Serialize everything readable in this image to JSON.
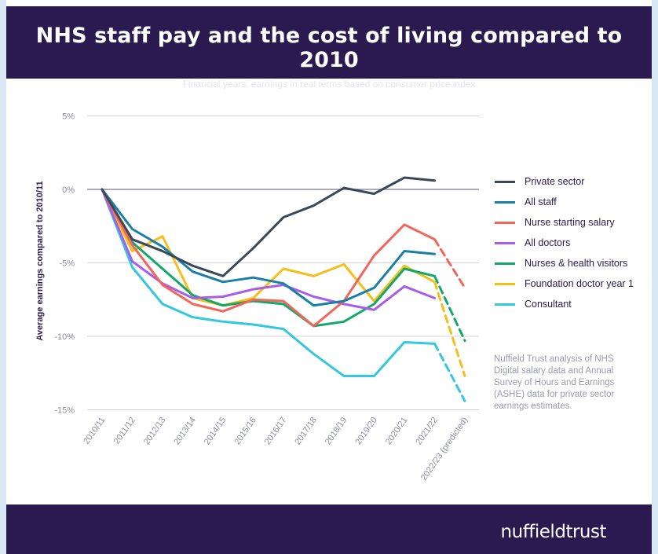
{
  "header": {
    "title": "NHS staff pay and the cost of living compared to 2010",
    "subtitle": "Financial years, earnings in real terms based on consumer price index"
  },
  "footer": {
    "logo_part1": "nuffield",
    "logo_part2": "trust"
  },
  "note": "Nuffield Trust analysis of NHS Digital salary data and Annual Survey of Hours and Earnings (ASHE) data for private sector earnings estimates.",
  "chart_data": {
    "type": "line",
    "title": "NHS staff pay and the cost of living compared to 2010",
    "subtitle": "Financial years, earnings in real terms based on consumer price index",
    "ylabel": "Average earnings compared to 2010/11",
    "xlabel": "",
    "ylim": [
      -15,
      5
    ],
    "yticks": [
      5,
      0,
      -5,
      -10,
      -15
    ],
    "ytick_labels": [
      "5%",
      "0%",
      "-5%",
      "-10%",
      "-15%"
    ],
    "categories": [
      "2010/11",
      "2011/12",
      "2012/13",
      "2013/14",
      "2014/15",
      "2015/16",
      "2016/17",
      "2017/18",
      "2018/19",
      "2019/20",
      "2020/21",
      "2021/22",
      "2022/23 (predicted)"
    ],
    "grid": "horizontal",
    "legend_position": "right",
    "series": [
      {
        "name": "Private sector",
        "color": "#3a4858",
        "values": [
          0,
          -3.4,
          -4.2,
          -5.2,
          -5.9,
          -4.0,
          -1.9,
          -1.1,
          0.1,
          -0.3,
          0.8,
          0.6,
          null
        ],
        "predicted": null
      },
      {
        "name": "All staff",
        "color": "#1a7fa6",
        "values": [
          0,
          -2.7,
          -3.9,
          -5.6,
          -6.3,
          -6.0,
          -6.4,
          -7.9,
          -7.6,
          -6.7,
          -4.2,
          -4.4,
          null
        ],
        "predicted": null
      },
      {
        "name": "Nurse starting salary",
        "color": "#f2665a",
        "values": [
          0,
          -3.8,
          -6.5,
          -7.8,
          -8.3,
          -7.5,
          -7.6,
          -9.3,
          -7.6,
          -4.5,
          -2.4,
          -3.4,
          -6.7
        ],
        "predicted": -6.7
      },
      {
        "name": "All doctors",
        "color": "#a95ce8",
        "values": [
          0,
          -4.9,
          -6.4,
          -7.4,
          -7.3,
          -6.8,
          -6.5,
          -7.3,
          -7.8,
          -8.2,
          -6.6,
          -7.4,
          null
        ],
        "predicted": null
      },
      {
        "name": "Nurses & health visitors",
        "color": "#12a86b",
        "values": [
          0,
          -3.6,
          -5.4,
          -7.2,
          -7.9,
          -7.6,
          -7.8,
          -9.3,
          -9.0,
          -7.8,
          -5.4,
          -5.9,
          -10.3
        ],
        "predicted": -10.3
      },
      {
        "name": "Foundation doctor year 1",
        "color": "#f5bf1b",
        "values": [
          0,
          -4.2,
          -3.2,
          -7.4,
          -7.9,
          -7.4,
          -5.4,
          -5.9,
          -5.1,
          -7.6,
          -5.2,
          -6.3,
          -12.7
        ],
        "predicted": -12.7
      },
      {
        "name": "Consultant",
        "color": "#33c8e0",
        "values": [
          0,
          -5.3,
          -7.8,
          -8.7,
          -9.0,
          -9.2,
          -9.5,
          -11.2,
          -12.7,
          -12.7,
          -10.4,
          -10.5,
          -14.4
        ],
        "predicted": -14.4
      }
    ]
  }
}
